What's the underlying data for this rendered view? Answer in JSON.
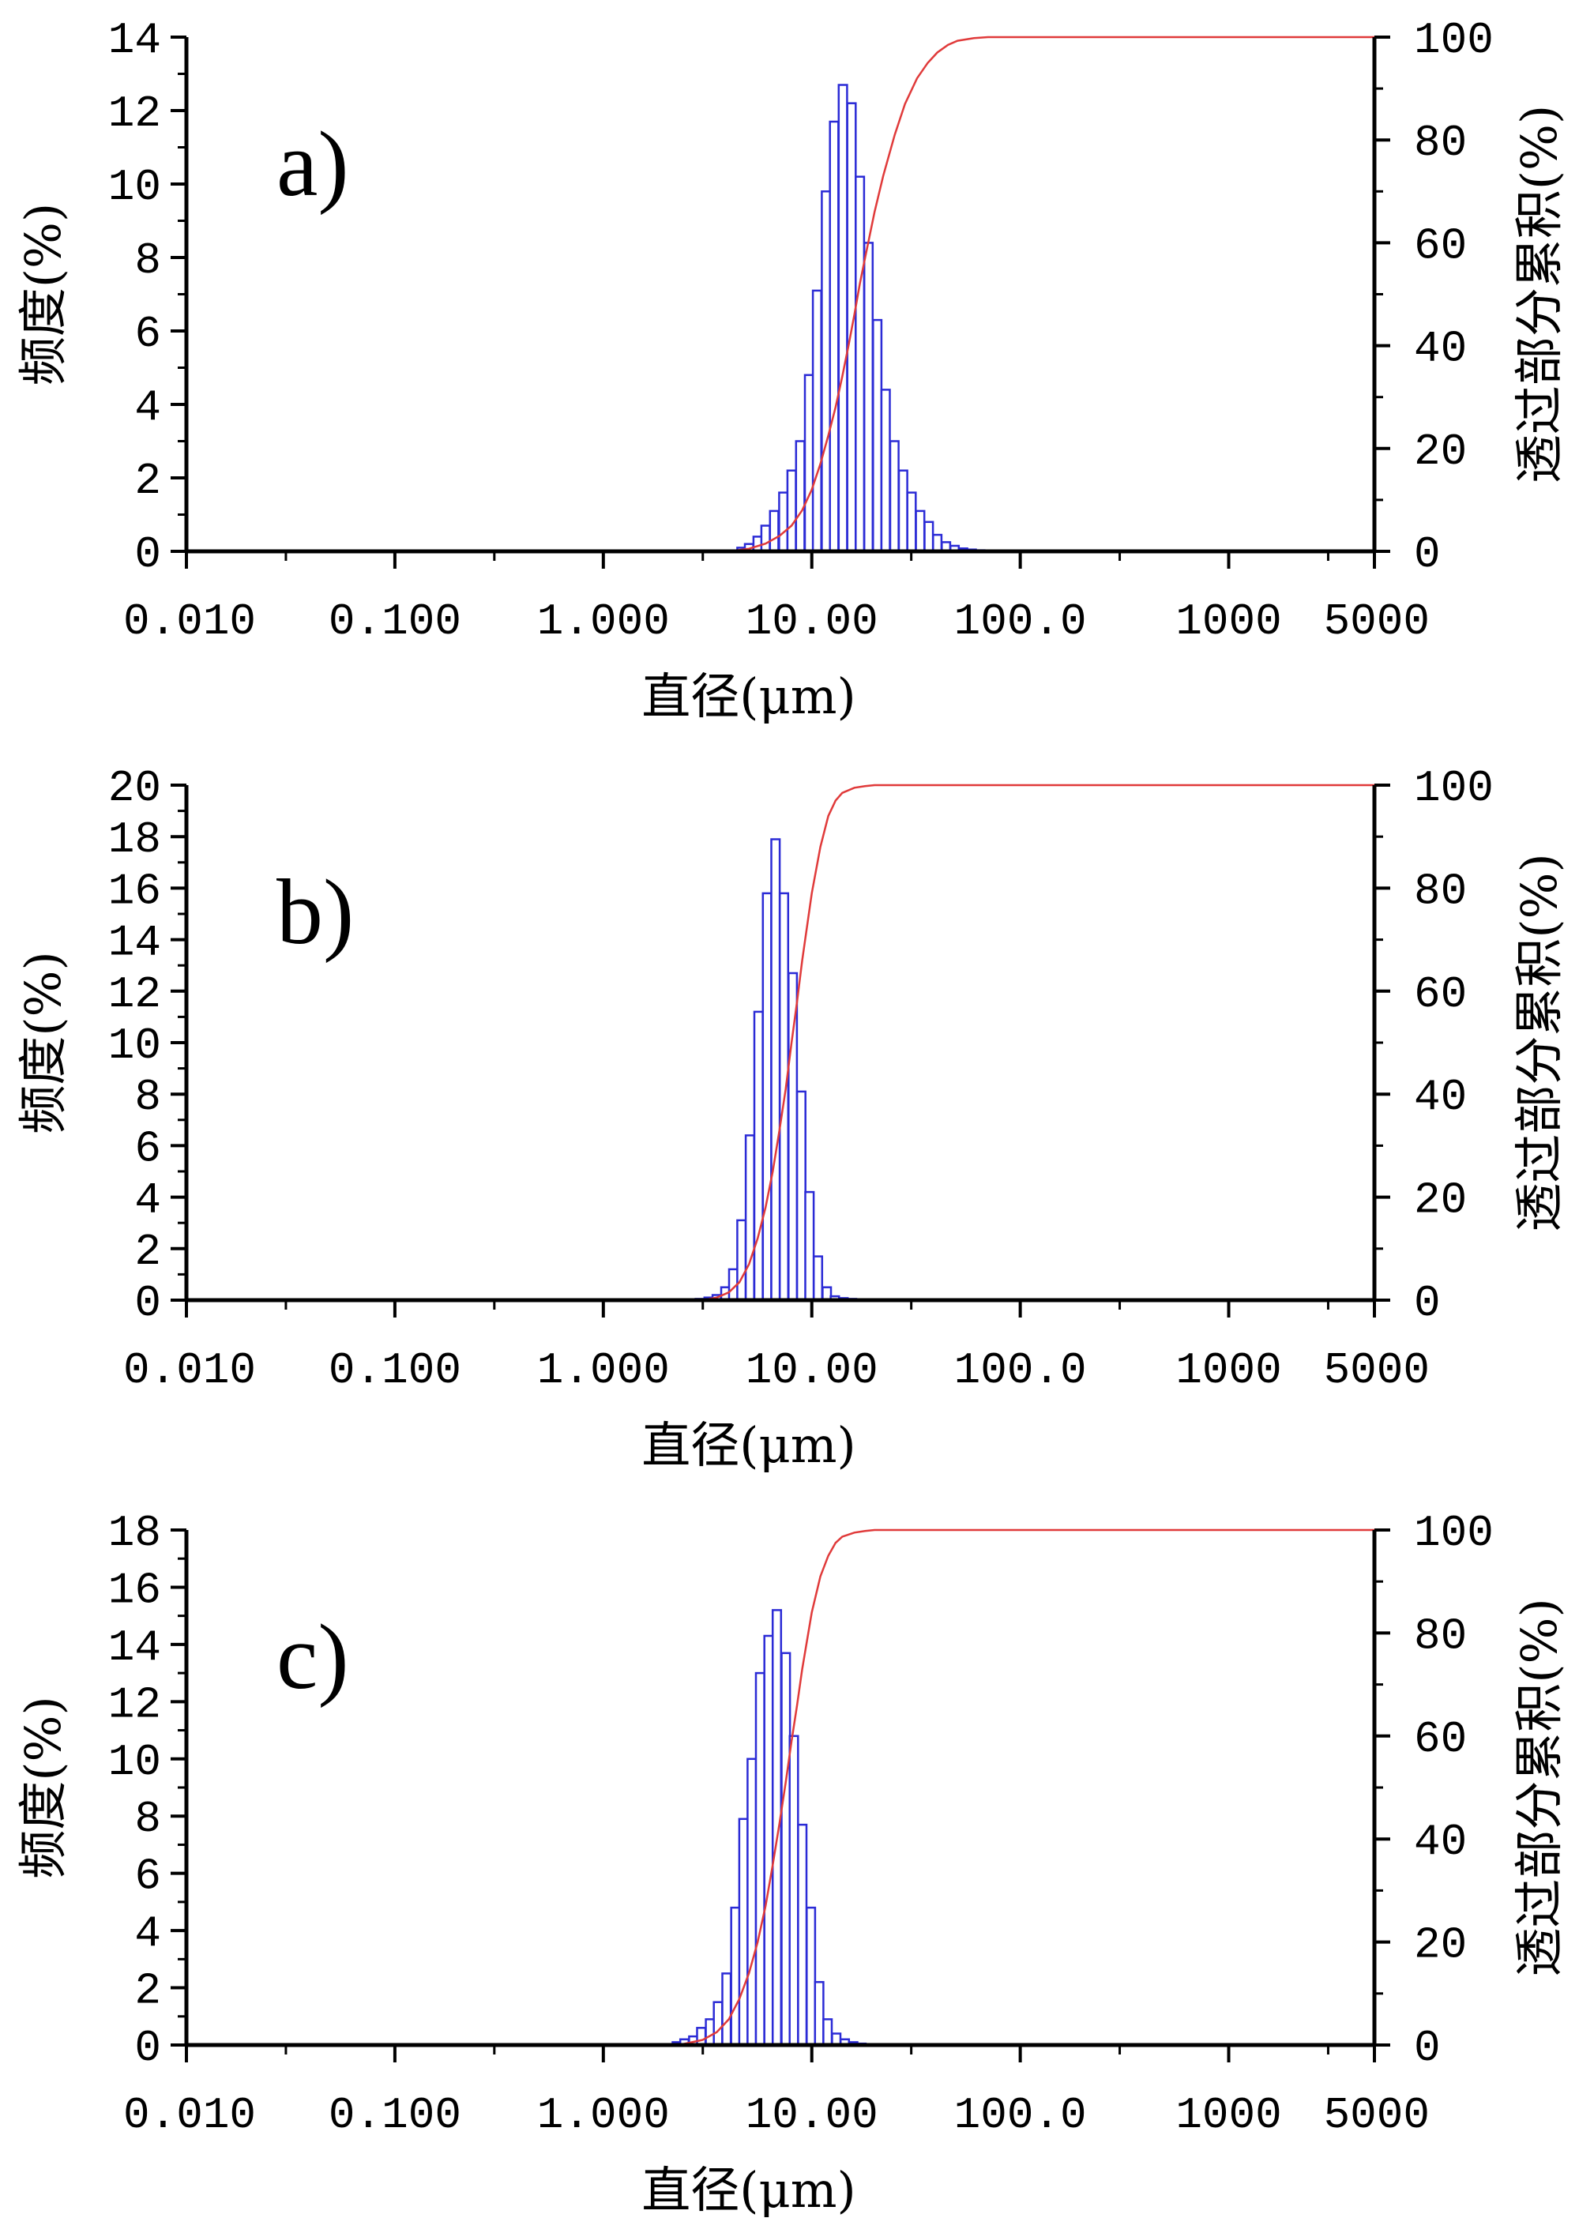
{
  "chart_data": [
    {
      "type": "bar+line",
      "panel_label": "a)",
      "xlabel": "直径(μm)",
      "ylabel_left": "频度(%)",
      "ylabel_right": "透过部分累积(%)",
      "x_scale": "log",
      "xlim": [
        0.01,
        5000
      ],
      "x_ticks": [
        "0.010",
        "0.100",
        "1.000",
        "10.00",
        "100.0",
        "1000",
        "5000"
      ],
      "x_tick_values": [
        0.01,
        0.1,
        1,
        10,
        100,
        1000,
        5000
      ],
      "ylim_left": [
        0,
        14
      ],
      "y_ticks_left": [
        0,
        2,
        4,
        6,
        8,
        10,
        12,
        14
      ],
      "ylim_right": [
        0,
        100
      ],
      "y_ticks_right": [
        0,
        20,
        40,
        60,
        80,
        100
      ],
      "bars": {
        "name": "频度",
        "color": "#2b2bd6",
        "x": [
          4.6,
          5.0,
          5.5,
          6.0,
          6.6,
          7.3,
          8.0,
          8.8,
          9.7,
          10.6,
          11.7,
          12.8,
          14.1,
          15.5,
          17.0,
          18.7,
          20.6,
          22.6,
          24.9,
          27.4,
          30.1,
          33.1,
          36.4,
          40.0,
          44.0,
          48.4,
          53.2,
          58.5,
          64.3
        ],
        "values": [
          0.1,
          0.2,
          0.4,
          0.7,
          1.1,
          1.6,
          2.2,
          3.0,
          4.8,
          7.1,
          9.8,
          11.7,
          12.7,
          12.2,
          10.2,
          8.4,
          6.3,
          4.4,
          3.0,
          2.2,
          1.6,
          1.1,
          0.8,
          0.45,
          0.25,
          0.15,
          0.08,
          0.05,
          0.03
        ]
      },
      "cumulative": {
        "name": "透过部分累积",
        "color": "#e03a3a",
        "x": [
          4.0,
          5.0,
          6.0,
          7.0,
          8.0,
          9.0,
          10.0,
          11.0,
          12.0,
          13.0,
          14.0,
          15.0,
          16.0,
          17.0,
          18.0,
          20.0,
          22.0,
          25.0,
          28.0,
          32.0,
          36.0,
          40.0,
          45.0,
          50.0,
          60.0,
          70.0,
          80.0,
          5000
        ],
        "values": [
          0,
          0.5,
          1.5,
          3,
          5,
          8,
          12,
          17,
          22.5,
          28,
          34,
          40,
          46,
          52,
          57,
          66,
          73,
          81,
          87,
          92,
          95,
          97,
          98.5,
          99.3,
          99.8,
          100,
          100,
          100
        ]
      }
    },
    {
      "type": "bar+line",
      "panel_label": "b)",
      "xlabel": "直径(μm)",
      "ylabel_left": "频度(%)",
      "ylabel_right": "透过部分累积(%)",
      "x_scale": "log",
      "xlim": [
        0.01,
        5000
      ],
      "x_ticks": [
        "0.010",
        "0.100",
        "1.000",
        "10.00",
        "100.0",
        "1000",
        "5000"
      ],
      "x_tick_values": [
        0.01,
        0.1,
        1,
        10,
        100,
        1000,
        5000
      ],
      "ylim_left": [
        0,
        20
      ],
      "y_ticks_left": [
        0,
        2,
        4,
        6,
        8,
        10,
        12,
        14,
        16,
        18,
        20
      ],
      "ylim_right": [
        0,
        100
      ],
      "y_ticks_right": [
        0,
        20,
        40,
        60,
        80,
        100
      ],
      "bars": {
        "name": "频度",
        "color": "#2b2bd6",
        "x": [
          2.9,
          3.2,
          3.5,
          3.85,
          4.2,
          4.6,
          5.05,
          5.55,
          6.1,
          6.7,
          7.35,
          8.1,
          8.9,
          9.75,
          10.7,
          11.8,
          12.9,
          14.2,
          15.6,
          17.2,
          18.9
        ],
        "values": [
          0.05,
          0.1,
          0.2,
          0.5,
          1.2,
          3.1,
          6.4,
          11.2,
          15.8,
          17.9,
          15.8,
          12.7,
          8.1,
          4.2,
          1.7,
          0.5,
          0.15,
          0.08,
          0.05,
          0.03,
          0.02
        ]
      },
      "cumulative": {
        "name": "透过部分累积",
        "color": "#e03a3a",
        "x": [
          3.0,
          3.5,
          4.0,
          4.5,
          5.0,
          5.5,
          6.0,
          6.5,
          7.0,
          7.5,
          8.0,
          8.5,
          9.0,
          10.0,
          11.0,
          12.0,
          13.0,
          14.0,
          16.0,
          18.0,
          20.0,
          25.0,
          5000
        ],
        "values": [
          0,
          0.5,
          1.5,
          3.5,
          7,
          12,
          18,
          25,
          33,
          41,
          50,
          58,
          66,
          79,
          88,
          94,
          97,
          98.5,
          99.5,
          99.8,
          100,
          100,
          100
        ]
      }
    },
    {
      "type": "bar+line",
      "panel_label": "c)",
      "xlabel": "直径(μm)",
      "ylabel_left": "频度(%)",
      "ylabel_right": "透过部分累积(%)",
      "x_scale": "log",
      "xlim": [
        0.01,
        5000
      ],
      "x_ticks": [
        "0.010",
        "0.100",
        "1.000",
        "10.00",
        "100.0",
        "1000",
        "5000"
      ],
      "x_tick_values": [
        0.01,
        0.1,
        1,
        10,
        100,
        1000,
        5000
      ],
      "ylim_left": [
        0,
        18
      ],
      "y_ticks_left": [
        0,
        2,
        4,
        6,
        8,
        10,
        12,
        14,
        16,
        18
      ],
      "ylim_right": [
        0,
        100
      ],
      "y_ticks_right": [
        0,
        20,
        40,
        60,
        80,
        100
      ],
      "bars": {
        "name": "频度",
        "color": "#2b2bd6",
        "x": [
          2.25,
          2.45,
          2.7,
          2.95,
          3.25,
          3.55,
          3.9,
          4.3,
          4.7,
          5.15,
          5.65,
          6.2,
          6.8,
          7.5,
          8.2,
          9.0,
          9.9,
          10.85,
          11.9,
          13.1,
          14.4,
          15.8,
          17.3,
          19.0,
          20.9
        ],
        "values": [
          0.1,
          0.2,
          0.3,
          0.6,
          0.9,
          1.5,
          2.5,
          4.8,
          7.9,
          10.0,
          13.0,
          14.3,
          15.2,
          13.7,
          10.8,
          7.7,
          4.8,
          2.2,
          0.9,
          0.4,
          0.2,
          0.1,
          0.05,
          0.03,
          0.02
        ]
      },
      "cumulative": {
        "name": "透过部分累积",
        "color": "#e03a3a",
        "x": [
          2.3,
          3.0,
          3.5,
          4.0,
          4.5,
          5.0,
          5.5,
          6.0,
          6.5,
          7.0,
          7.5,
          8.0,
          8.5,
          9.0,
          10.0,
          11.0,
          12.0,
          13.0,
          14.0,
          16.0,
          18.0,
          20.0,
          25.0,
          5000
        ],
        "values": [
          0,
          1,
          2.5,
          5,
          9,
          14,
          20,
          27,
          35,
          43,
          51,
          59,
          66,
          73,
          84,
          91,
          95,
          97.5,
          98.7,
          99.5,
          99.8,
          100,
          100,
          100
        ]
      }
    }
  ]
}
